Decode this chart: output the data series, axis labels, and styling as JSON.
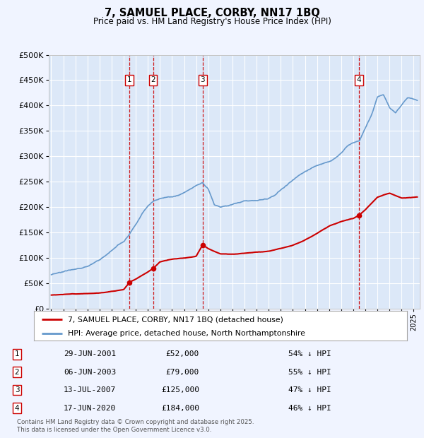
{
  "title": "7, SAMUEL PLACE, CORBY, NN17 1BQ",
  "subtitle": "Price paid vs. HM Land Registry's House Price Index (HPI)",
  "bg_color": "#f0f4ff",
  "plot_bg_color": "#dce8f8",
  "grid_color": "#ffffff",
  "ylim": [
    0,
    500000
  ],
  "yticks": [
    0,
    50000,
    100000,
    150000,
    200000,
    250000,
    300000,
    350000,
    400000,
    450000,
    500000
  ],
  "xlim_start": 1994.8,
  "xlim_end": 2025.5,
  "sales": [
    {
      "num": 1,
      "date_x": 2001.49,
      "price": 52000,
      "label": "29-JUN-2001",
      "pct": "54% ↓ HPI"
    },
    {
      "num": 2,
      "date_x": 2003.43,
      "price": 79000,
      "label": "06-JUN-2003",
      "pct": "55% ↓ HPI"
    },
    {
      "num": 3,
      "date_x": 2007.53,
      "price": 125000,
      "label": "13-JUL-2007",
      "pct": "47% ↓ HPI"
    },
    {
      "num": 4,
      "date_x": 2020.46,
      "price": 184000,
      "label": "17-JUN-2020",
      "pct": "46% ↓ HPI"
    }
  ],
  "sale_color": "#cc0000",
  "hpi_color": "#6699cc",
  "legend_sale_label": "7, SAMUEL PLACE, CORBY, NN17 1BQ (detached house)",
  "legend_hpi_label": "HPI: Average price, detached house, North Northamptonshire",
  "footer": "Contains HM Land Registry data © Crown copyright and database right 2025.\nThis data is licensed under the Open Government Licence v3.0.",
  "xtick_years": [
    1995,
    1996,
    1997,
    1998,
    1999,
    2000,
    2001,
    2002,
    2003,
    2004,
    2005,
    2006,
    2007,
    2008,
    2009,
    2010,
    2011,
    2012,
    2013,
    2014,
    2015,
    2016,
    2017,
    2018,
    2019,
    2020,
    2021,
    2022,
    2023,
    2024,
    2025
  ],
  "hpi_knots_x": [
    1995.0,
    1995.5,
    1996.0,
    1996.5,
    1997.0,
    1997.5,
    1998.0,
    1998.5,
    1999.0,
    1999.5,
    2000.0,
    2000.5,
    2001.0,
    2001.5,
    2002.0,
    2002.5,
    2003.0,
    2003.5,
    2004.0,
    2004.5,
    2005.0,
    2005.5,
    2006.0,
    2006.5,
    2007.0,
    2007.5,
    2008.0,
    2008.5,
    2009.0,
    2009.5,
    2010.0,
    2010.5,
    2011.0,
    2011.5,
    2012.0,
    2012.5,
    2013.0,
    2013.5,
    2014.0,
    2014.5,
    2015.0,
    2015.5,
    2016.0,
    2016.5,
    2017.0,
    2017.5,
    2018.0,
    2018.5,
    2019.0,
    2019.5,
    2020.0,
    2020.5,
    2021.0,
    2021.5,
    2022.0,
    2022.5,
    2023.0,
    2023.5,
    2024.0,
    2024.5,
    2025.3
  ],
  "hpi_knots_y": [
    67000,
    68000,
    70000,
    73000,
    76000,
    79000,
    83000,
    88000,
    93000,
    99000,
    108000,
    118000,
    125000,
    140000,
    160000,
    180000,
    195000,
    205000,
    210000,
    213000,
    215000,
    218000,
    222000,
    228000,
    236000,
    242000,
    230000,
    200000,
    195000,
    198000,
    202000,
    205000,
    207000,
    208000,
    208000,
    210000,
    213000,
    218000,
    228000,
    238000,
    248000,
    258000,
    265000,
    272000,
    278000,
    283000,
    288000,
    295000,
    305000,
    318000,
    325000,
    330000,
    355000,
    380000,
    415000,
    420000,
    395000,
    385000,
    400000,
    415000,
    410000
  ],
  "sale_knots_x": [
    1995.0,
    1997.0,
    1999.0,
    2001.0,
    2001.49,
    2002.0,
    2003.0,
    2003.43,
    2004.0,
    2005.0,
    2006.0,
    2007.0,
    2007.53,
    2008.0,
    2009.0,
    2010.0,
    2011.0,
    2012.0,
    2013.0,
    2014.0,
    2015.0,
    2016.0,
    2017.0,
    2018.0,
    2019.0,
    2020.0,
    2020.46,
    2021.0,
    2022.0,
    2023.0,
    2024.0,
    2025.3
  ],
  "sale_knots_y": [
    27000,
    29000,
    32000,
    38000,
    52000,
    58000,
    72000,
    79000,
    92000,
    97000,
    100000,
    103000,
    125000,
    118000,
    107000,
    106000,
    108000,
    110000,
    112000,
    118000,
    125000,
    135000,
    148000,
    162000,
    172000,
    178000,
    184000,
    195000,
    220000,
    228000,
    218000,
    220000
  ]
}
